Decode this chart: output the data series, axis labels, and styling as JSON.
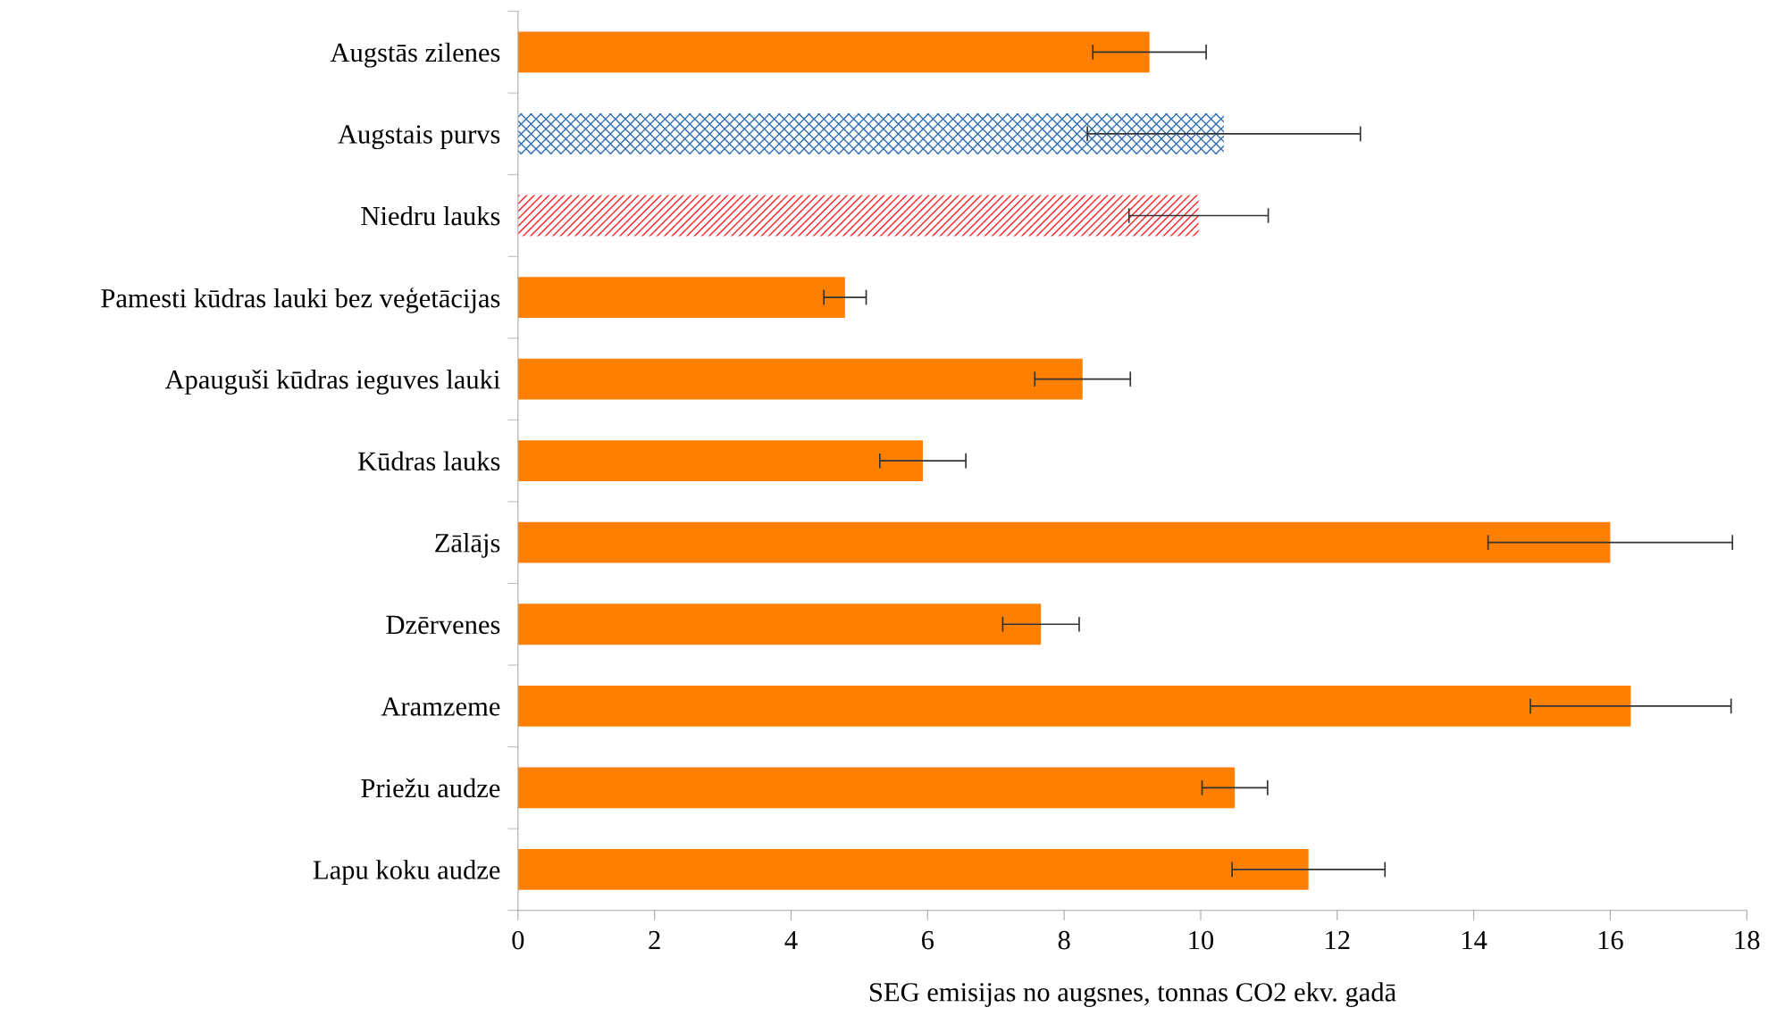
{
  "chart_data": {
    "type": "bar",
    "orientation": "horizontal",
    "xlabel": "SEG emisijas no augsnes, tonnas CO2 ekv. gadā",
    "categories": [
      "Augstās zilenes",
      "Augstais purvs",
      "Niedru lauks",
      "Pamesti kūdras lauki bez veģetācijas",
      "Apauguši kūdras ieguves lauki",
      "Kūdras lauks",
      "Zālājs",
      "Dzērvenes",
      "Aramzeme",
      "Priežu audze",
      "Lapu koku audze"
    ],
    "values": [
      9.25,
      10.34,
      9.97,
      4.79,
      8.27,
      5.93,
      16.0,
      7.66,
      16.3,
      10.5,
      11.58
    ],
    "errors": [
      0.83,
      2.0,
      1.02,
      0.31,
      0.7,
      0.63,
      1.79,
      0.56,
      1.47,
      0.48,
      1.12
    ],
    "colors": [
      "#ff7f00",
      "#2e6db4",
      "#ff2020",
      "#ff7f00",
      "#ff7f00",
      "#ff7f00",
      "#ff7f00",
      "#ff7f00",
      "#ff7f00",
      "#ff7f00",
      "#ff7f00"
    ],
    "xlim": [
      0,
      18
    ],
    "xticks": [
      0,
      2,
      4,
      6,
      8,
      10,
      12,
      14,
      16,
      18
    ],
    "grid": false,
    "legend": false
  }
}
